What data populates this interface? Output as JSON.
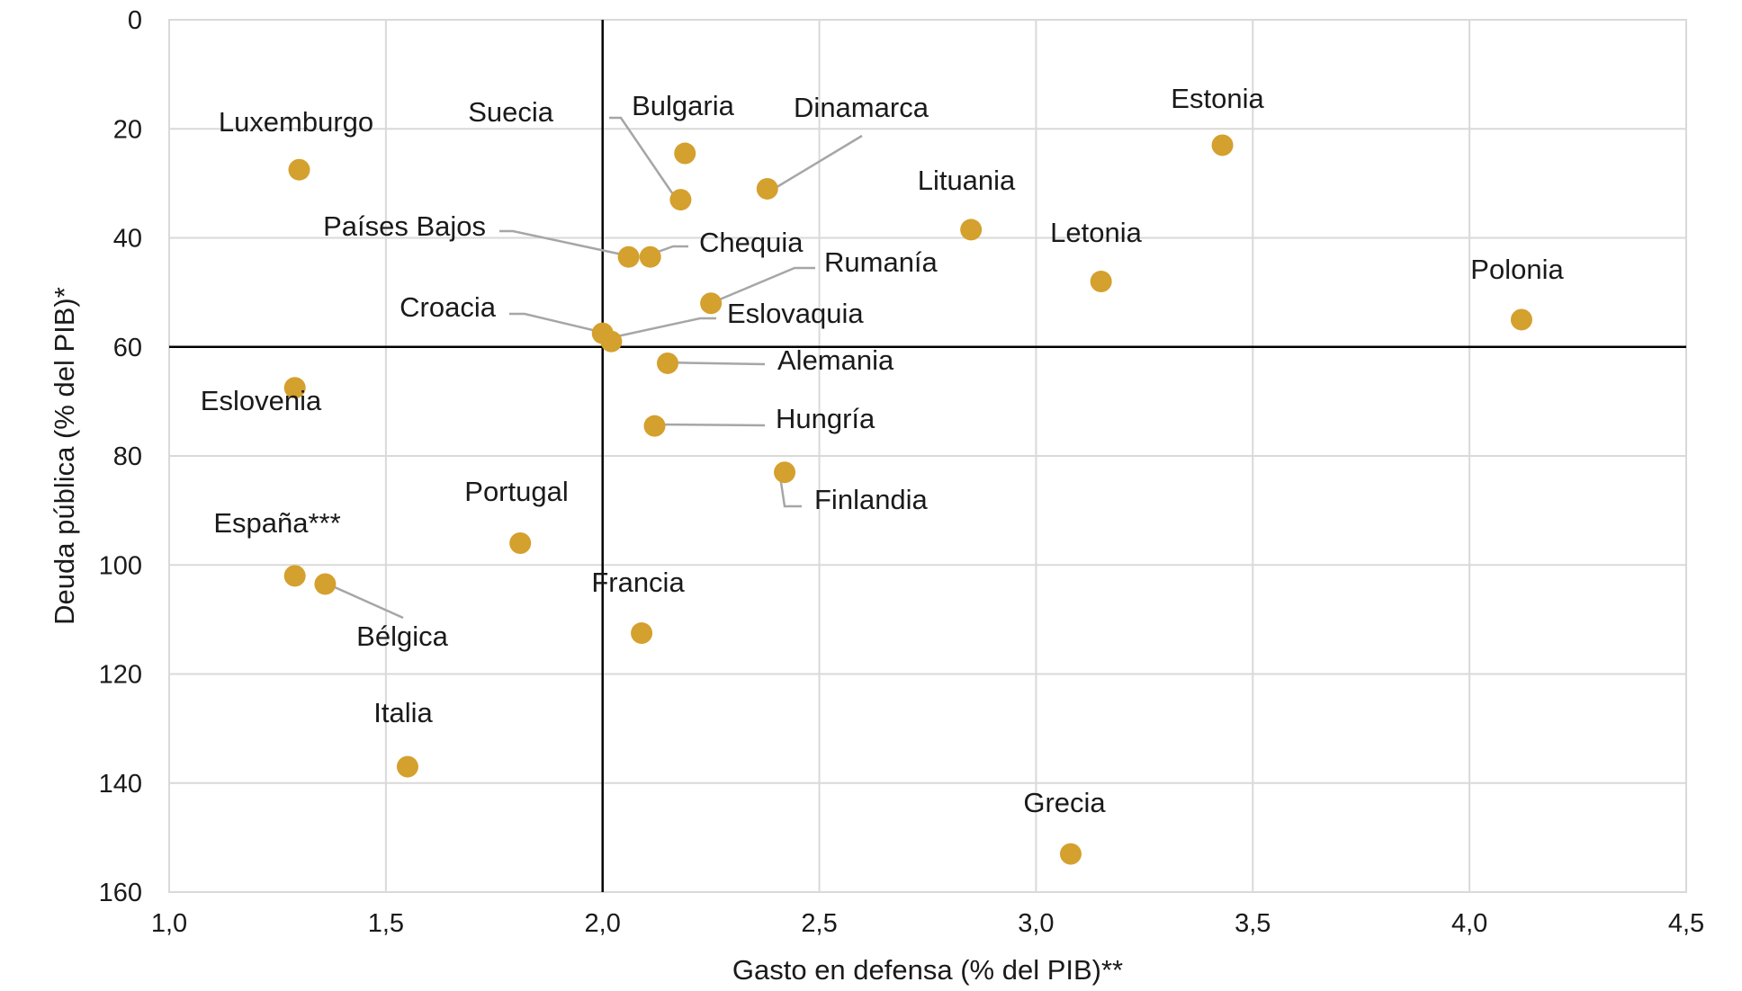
{
  "colors": {
    "point": "#D4A02E",
    "grid": "#D9D9D9",
    "reference": "#000000",
    "leader": "#A6A6A6"
  },
  "chart_data": {
    "type": "scatter",
    "title": "",
    "xlabel": "Gasto en defensa (% del PIB)**",
    "ylabel": "Deuda pública (% del PIB)*",
    "xlim": [
      1.0,
      4.5
    ],
    "ylim": [
      0,
      160
    ],
    "y_inverted": true,
    "grid": true,
    "x_ticks": [
      1.0,
      1.5,
      2.0,
      2.5,
      3.0,
      3.5,
      4.0,
      4.5
    ],
    "x_tick_labels": [
      "1,0",
      "1,5",
      "2,0",
      "2,5",
      "3,0",
      "3,5",
      "4,0",
      "4,5"
    ],
    "y_ticks": [
      0,
      20,
      40,
      60,
      80,
      100,
      120,
      140,
      160
    ],
    "y_tick_labels": [
      "0",
      "20",
      "40",
      "60",
      "80",
      "100",
      "120",
      "140",
      "160"
    ],
    "reference_lines": {
      "x": 2.0,
      "y": 60
    },
    "points": [
      {
        "name": "Luxemburgo",
        "x": 1.3,
        "y": 27.5
      },
      {
        "name": "Suecia",
        "x": 2.18,
        "y": 33.0
      },
      {
        "name": "Bulgaria",
        "x": 2.19,
        "y": 24.5
      },
      {
        "name": "Dinamarca",
        "x": 2.38,
        "y": 31.0
      },
      {
        "name": "Estonia",
        "x": 3.43,
        "y": 23.0
      },
      {
        "name": "Lituania",
        "x": 2.85,
        "y": 38.5
      },
      {
        "name": "Letonia",
        "x": 3.15,
        "y": 48.0
      },
      {
        "name": "Polonia",
        "x": 4.12,
        "y": 55.0
      },
      {
        "name": "Países Bajos",
        "x": 2.06,
        "y": 43.5
      },
      {
        "name": "Chequia",
        "x": 2.11,
        "y": 43.5
      },
      {
        "name": "Rumanía",
        "x": 2.25,
        "y": 52.0
      },
      {
        "name": "Croacia",
        "x": 2.0,
        "y": 57.5
      },
      {
        "name": "Eslovaquia",
        "x": 2.02,
        "y": 59.0
      },
      {
        "name": "Alemania",
        "x": 2.15,
        "y": 63.0
      },
      {
        "name": "Eslovenia",
        "x": 1.29,
        "y": 67.5
      },
      {
        "name": "Hungría",
        "x": 2.12,
        "y": 74.5
      },
      {
        "name": "Finlandia",
        "x": 2.42,
        "y": 83.0
      },
      {
        "name": "Portugal",
        "x": 1.81,
        "y": 96.0
      },
      {
        "name": "España***",
        "x": 1.29,
        "y": 102.0
      },
      {
        "name": "Bélgica",
        "x": 1.36,
        "y": 103.5
      },
      {
        "name": "Francia",
        "x": 2.09,
        "y": 112.5
      },
      {
        "name": "Italia",
        "x": 1.55,
        "y": 137.0
      },
      {
        "name": "Grecia",
        "x": 3.08,
        "y": 153.0
      }
    ]
  }
}
